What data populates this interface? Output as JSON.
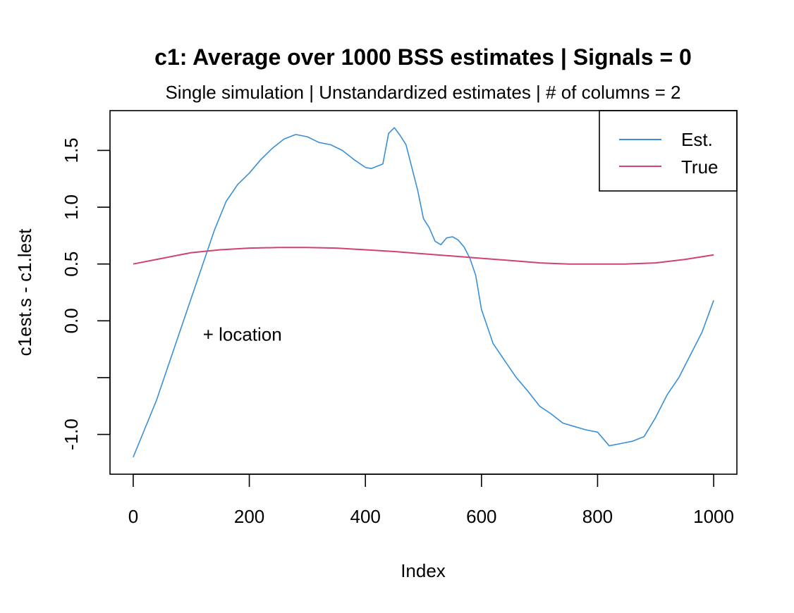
{
  "chart_data": {
    "type": "line",
    "title": "c1: Average over 1000 BSS estimates  |  Signals = 0",
    "subtitle": "Single simulation  |  Unstandardized estimates  |  # of columns = 2",
    "xlabel": "Index",
    "ylabel": "c1est.s - c1.lest",
    "xlim": [
      -40,
      1040
    ],
    "ylim": [
      -1.35,
      1.85
    ],
    "x_ticks": [
      0,
      200,
      400,
      600,
      800,
      1000
    ],
    "x_tick_labels": [
      "0",
      "200",
      "400",
      "600",
      "800",
      "1000"
    ],
    "y_ticks": [
      -1.0,
      -0.5,
      0.0,
      0.5,
      1.0,
      1.5
    ],
    "y_tick_labels": [
      "-1.0",
      "",
      "0.0",
      "0.5",
      "1.0",
      "1.5"
    ],
    "grid": false,
    "legend_position": "top-right",
    "annotation": {
      "text": "+ location",
      "x": 120,
      "y": -0.12
    },
    "series": [
      {
        "name": "Est.",
        "color": "#3a8fd6",
        "x": [
          0,
          20,
          40,
          60,
          80,
          100,
          120,
          140,
          160,
          180,
          200,
          220,
          240,
          260,
          280,
          300,
          320,
          340,
          360,
          380,
          400,
          410,
          420,
          430,
          440,
          450,
          460,
          470,
          480,
          490,
          500,
          510,
          520,
          530,
          540,
          550,
          560,
          570,
          580,
          590,
          600,
          620,
          640,
          660,
          680,
          700,
          720,
          740,
          760,
          780,
          800,
          820,
          840,
          860,
          880,
          900,
          920,
          940,
          960,
          980,
          1000
        ],
        "y": [
          -1.2,
          -0.95,
          -0.7,
          -0.4,
          -0.1,
          0.2,
          0.5,
          0.8,
          1.05,
          1.2,
          1.3,
          1.42,
          1.52,
          1.6,
          1.64,
          1.62,
          1.57,
          1.55,
          1.5,
          1.42,
          1.35,
          1.34,
          1.36,
          1.38,
          1.65,
          1.7,
          1.63,
          1.55,
          1.35,
          1.15,
          0.9,
          0.82,
          0.7,
          0.67,
          0.73,
          0.74,
          0.71,
          0.65,
          0.55,
          0.4,
          0.1,
          -0.2,
          -0.35,
          -0.5,
          -0.62,
          -0.75,
          -0.82,
          -0.9,
          -0.93,
          -0.96,
          -0.98,
          -1.1,
          -1.08,
          -1.06,
          -1.02,
          -0.85,
          -0.65,
          -0.5,
          -0.3,
          -0.1,
          0.18
        ]
      },
      {
        "name": "True",
        "color": "#d1436d",
        "x": [
          0,
          50,
          100,
          150,
          200,
          250,
          300,
          350,
          400,
          450,
          500,
          550,
          600,
          650,
          700,
          750,
          800,
          850,
          900,
          950,
          1000
        ],
        "y": [
          0.5,
          0.55,
          0.6,
          0.625,
          0.64,
          0.645,
          0.645,
          0.64,
          0.625,
          0.61,
          0.59,
          0.57,
          0.55,
          0.53,
          0.51,
          0.5,
          0.5,
          0.5,
          0.51,
          0.54,
          0.58
        ]
      }
    ]
  }
}
